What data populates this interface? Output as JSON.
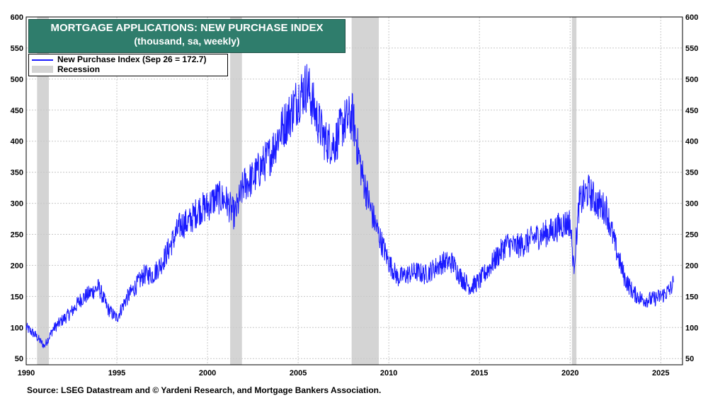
{
  "chart_data": {
    "type": "line",
    "title": "MORTGAGE APPLICATIONS: NEW PURCHASE INDEX",
    "subtitle": "(thousand, sa, weekly)",
    "xlabel": "",
    "ylabel": "",
    "xlim": [
      1990,
      2026.2
    ],
    "ylim": [
      40,
      600
    ],
    "x_ticks": [
      1990,
      1995,
      2000,
      2005,
      2010,
      2015,
      2020,
      2025
    ],
    "y_ticks": [
      50,
      100,
      150,
      200,
      250,
      300,
      350,
      400,
      450,
      500,
      550,
      600
    ],
    "grid": true,
    "legend_position": "top-left",
    "series": [
      {
        "name": "New Purchase Index (Sep 26 = 172.7)",
        "color": "#1a1aff",
        "x": [
          1990.0,
          1990.5,
          1991.0,
          1991.5,
          1992.0,
          1992.5,
          1993.0,
          1993.5,
          1994.0,
          1994.5,
          1995.0,
          1995.5,
          1996.0,
          1996.5,
          1997.0,
          1997.5,
          1998.0,
          1998.5,
          1999.0,
          1999.5,
          2000.0,
          2000.5,
          2001.0,
          2001.5,
          2002.0,
          2002.5,
          2003.0,
          2003.5,
          2004.0,
          2004.5,
          2005.0,
          2005.5,
          2006.0,
          2006.5,
          2007.0,
          2007.5,
          2008.0,
          2008.5,
          2009.0,
          2009.5,
          2010.0,
          2010.5,
          2011.0,
          2011.5,
          2012.0,
          2012.5,
          2013.0,
          2013.5,
          2014.0,
          2014.5,
          2015.0,
          2015.5,
          2016.0,
          2016.5,
          2017.0,
          2017.5,
          2018.0,
          2018.5,
          2019.0,
          2019.5,
          2020.0,
          2020.2,
          2020.5,
          2021.0,
          2021.5,
          2022.0,
          2022.5,
          2023.0,
          2023.5,
          2024.0,
          2024.5,
          2025.0,
          2025.5,
          2025.7
        ],
        "values": [
          100,
          88,
          70,
          98,
          112,
          125,
          145,
          155,
          165,
          130,
          115,
          145,
          165,
          185,
          185,
          205,
          235,
          265,
          270,
          290,
          295,
          310,
          305,
          280,
          330,
          340,
          360,
          380,
          415,
          440,
          470,
          490,
          440,
          400,
          395,
          430,
          440,
          350,
          290,
          245,
          205,
          180,
          185,
          190,
          185,
          195,
          205,
          205,
          180,
          165,
          175,
          195,
          215,
          235,
          230,
          235,
          245,
          250,
          255,
          265,
          270,
          195,
          300,
          320,
          300,
          290,
          230,
          180,
          155,
          145,
          145,
          150,
          160,
          172.7
        ]
      }
    ],
    "recession_label": "Recession",
    "recessions": [
      [
        1990.6,
        1991.25
      ],
      [
        2001.25,
        2001.9
      ],
      [
        2007.95,
        2009.45
      ],
      [
        2020.1,
        2020.35
      ]
    ]
  },
  "source": "Source: LSEG Datastream and © Yardeni Research, and Mortgage Bankers Association."
}
